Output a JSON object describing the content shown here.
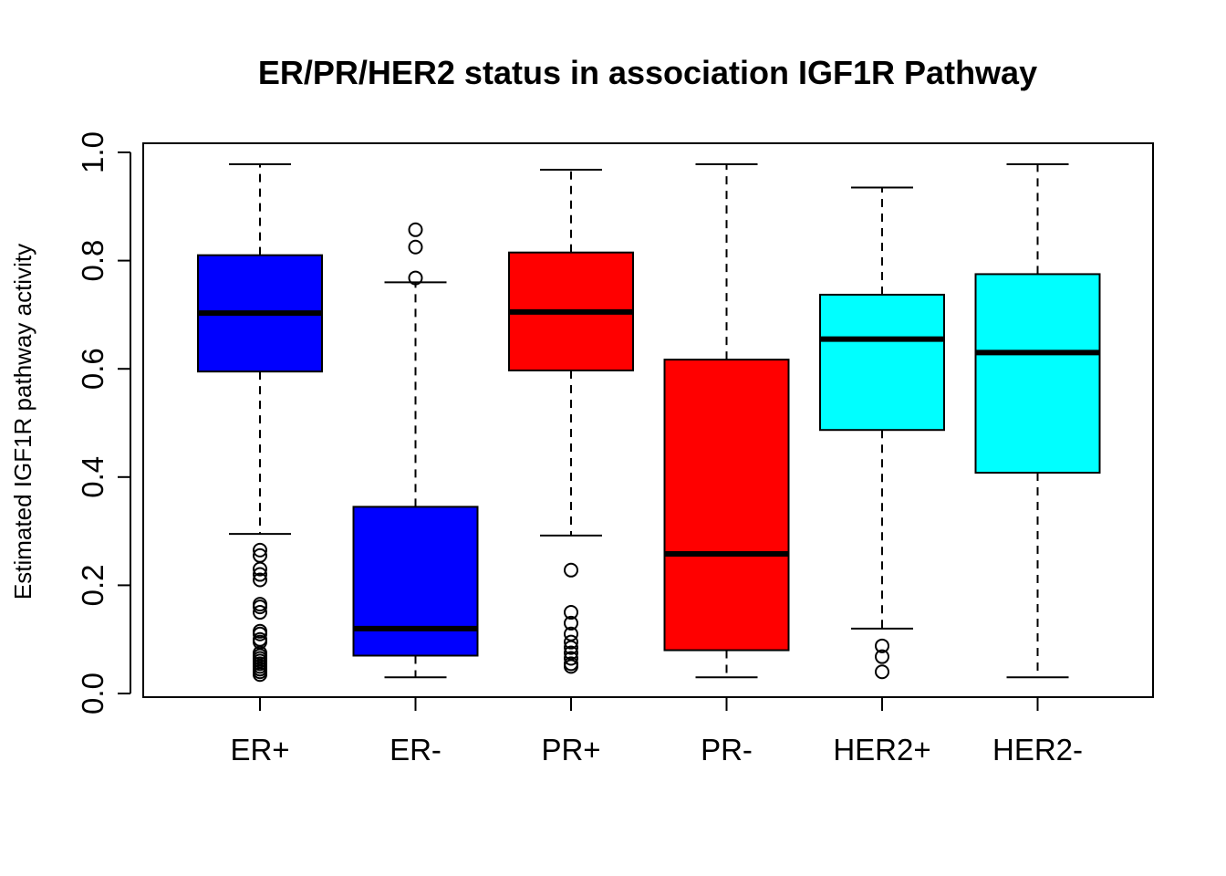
{
  "chart_data": {
    "type": "boxplot",
    "title": "ER/PR/HER2 status in association IGF1R Pathway",
    "xlabel": "",
    "ylabel": "Estimated IGF1R pathway activity",
    "ylim": [
      0.0,
      1.0
    ],
    "yticks": [
      "0.0",
      "0.2",
      "0.4",
      "0.6",
      "0.8",
      "1.0"
    ],
    "grid": false,
    "categories": [
      "ER+",
      "ER-",
      "PR+",
      "PR-",
      "HER2+",
      "HER2-"
    ],
    "colors": [
      "#0000ff",
      "#0000ff",
      "#ff0000",
      "#ff0000",
      "#00ffff",
      "#00ffff"
    ],
    "boxes": [
      {
        "label": "ER+",
        "whisker_low": 0.295,
        "q1": 0.595,
        "median": 0.703,
        "q3": 0.81,
        "whisker_high": 0.978,
        "outliers": [
          0.265,
          0.255,
          0.23,
          0.22,
          0.21,
          0.165,
          0.16,
          0.15,
          0.115,
          0.11,
          0.1,
          0.095,
          0.075,
          0.07,
          0.065,
          0.06,
          0.055,
          0.05,
          0.045,
          0.04,
          0.035
        ]
      },
      {
        "label": "ER-",
        "whisker_low": 0.03,
        "q1": 0.07,
        "median": 0.12,
        "q3": 0.345,
        "whisker_high": 0.76,
        "outliers": [
          0.857,
          0.825,
          0.768
        ]
      },
      {
        "label": "PR+",
        "whisker_low": 0.292,
        "q1": 0.597,
        "median": 0.705,
        "q3": 0.815,
        "whisker_high": 0.968,
        "outliers": [
          0.228,
          0.15,
          0.13,
          0.11,
          0.095,
          0.085,
          0.075,
          0.065,
          0.055,
          0.05
        ]
      },
      {
        "label": "PR-",
        "whisker_low": 0.03,
        "q1": 0.08,
        "median": 0.258,
        "q3": 0.617,
        "whisker_high": 0.978,
        "outliers": []
      },
      {
        "label": "HER2+",
        "whisker_low": 0.12,
        "q1": 0.487,
        "median": 0.655,
        "q3": 0.737,
        "whisker_high": 0.935,
        "outliers": [
          0.088,
          0.068,
          0.04
        ]
      },
      {
        "label": "HER2-",
        "whisker_low": 0.03,
        "q1": 0.408,
        "median": 0.63,
        "q3": 0.775,
        "whisker_high": 0.978,
        "outliers": []
      }
    ]
  }
}
